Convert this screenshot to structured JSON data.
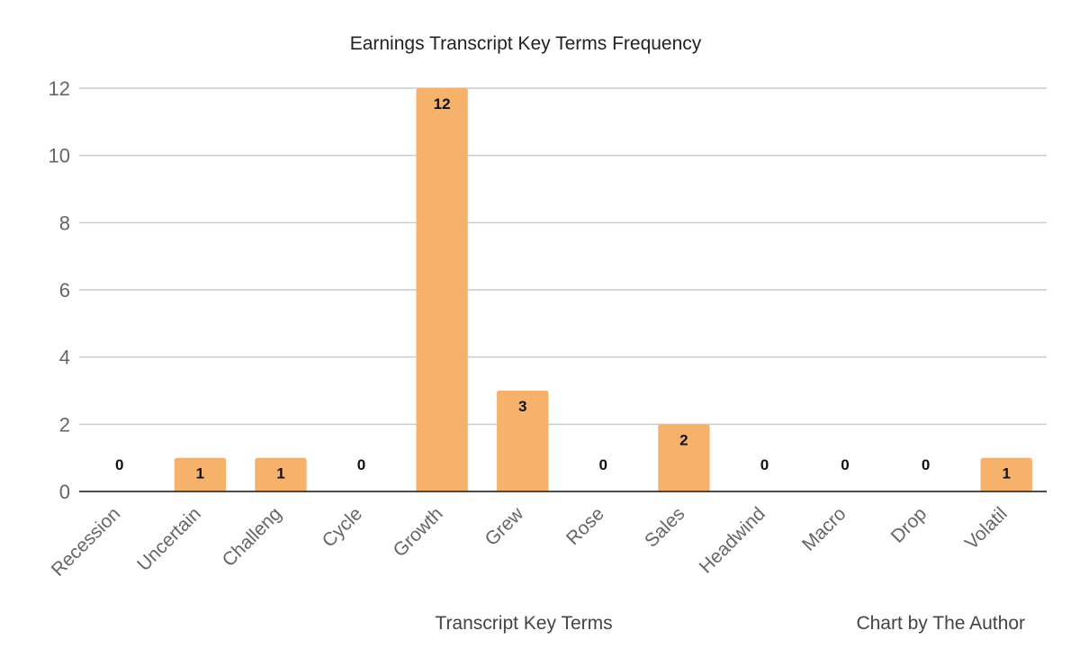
{
  "chart_data": {
    "type": "bar",
    "title": "Earnings Transcript Key Terms Frequency",
    "xlabel": "Transcript Key Terms",
    "ylabel": "",
    "categories": [
      "Recession",
      "Uncertain",
      "Challeng",
      "Cycle",
      "Growth",
      "Grew",
      "Rose",
      "Sales",
      "Headwind",
      "Macro",
      "Drop",
      "Volatil"
    ],
    "values": [
      0,
      1,
      1,
      0,
      12,
      3,
      0,
      2,
      0,
      0,
      0,
      1
    ],
    "ylim": [
      0,
      12
    ],
    "yticks": [
      0,
      2,
      4,
      6,
      8,
      10,
      12
    ],
    "grid": true,
    "legend": "none",
    "bar_color": "#f6b26b",
    "data_labels": true
  },
  "credit": "Chart by The Author"
}
